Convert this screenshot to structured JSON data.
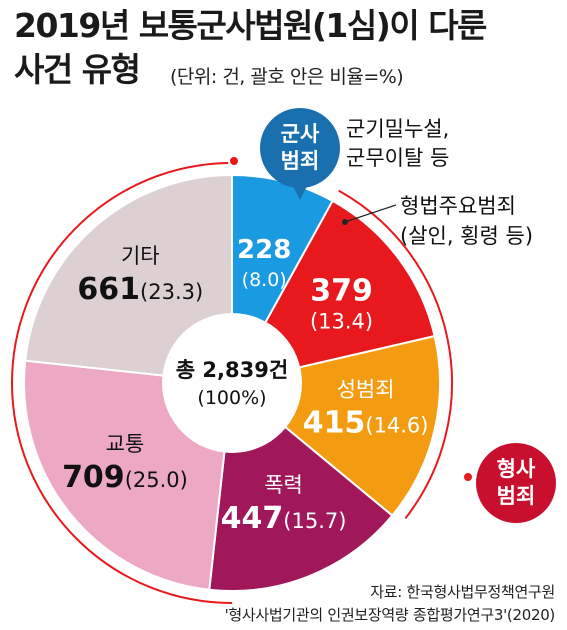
{
  "header": {
    "title_line1": "2019년 보통군사법원(1심)이 다룬",
    "title_line2": "사건 유형",
    "unit_note": "(단위: 건, 괄호 안은 비율=%)"
  },
  "chart_data": {
    "type": "pie",
    "style": "donut",
    "total": {
      "label": "총 2,839건",
      "percent_label": "(100%)"
    },
    "slices": [
      {
        "name": "군기밀누설, 군무이탈 등",
        "value": 228,
        "percent": 8.0,
        "value_label": "228",
        "percent_label": "(8.0)",
        "color": "#1a9ae0"
      },
      {
        "name": "형법주요범죄",
        "value": 379,
        "percent": 13.4,
        "value_label": "379",
        "percent_label": "(13.4)",
        "color": "#e8191d"
      },
      {
        "name": "성범죄",
        "value": 415,
        "percent": 14.6,
        "value_label": "415",
        "percent_label": "(14.6)",
        "color": "#f39c12"
      },
      {
        "name": "폭력",
        "value": 447,
        "percent": 15.7,
        "value_label": "447",
        "percent_label": "(15.7)",
        "color": "#a0185a"
      },
      {
        "name": "교통",
        "value": 709,
        "percent": 25.0,
        "value_label": "709",
        "percent_label": "(25.0)",
        "color": "#eda8c4"
      },
      {
        "name": "기타",
        "value": 661,
        "percent": 23.3,
        "value_label": "661",
        "percent_label": "(23.3)",
        "color": "#dcd0d2"
      }
    ],
    "annotations": {
      "military_group": "군사\n범죄",
      "military_detail_1": "군기밀누설,",
      "military_detail_2": "군무이탈 등",
      "major_detail_1": "형법주요범죄",
      "major_detail_2": "(살인, 횡령 등)",
      "criminal_group": "형사\n범죄"
    },
    "colors": {
      "military_badge": "#1a6fae",
      "criminal_badge": "#c8102e"
    }
  },
  "source": {
    "line1": "자료: 한국형사법무정책연구원",
    "line2": "'형사사법기관의 인권보장역량 종합평가연구3'(2020)"
  }
}
